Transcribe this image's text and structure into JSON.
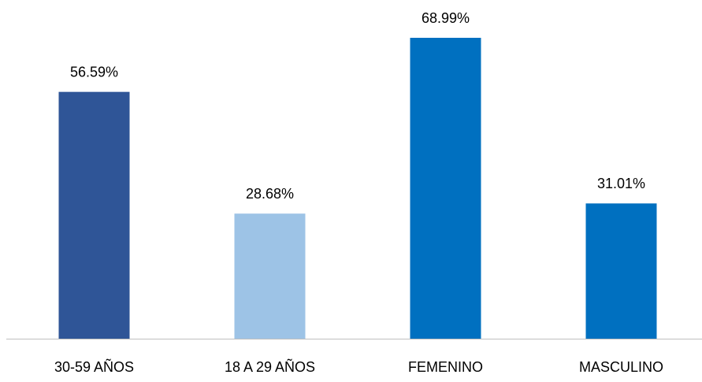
{
  "chart_data": {
    "type": "bar",
    "categories": [
      "30-59 AÑOS",
      "18 A 29 AÑOS",
      "FEMENINO",
      "MASCULINO"
    ],
    "values": [
      56.59,
      28.68,
      68.99,
      31.01
    ],
    "value_labels": [
      "56.59%",
      "28.68%",
      "68.99%",
      "31.01%"
    ],
    "colors": [
      "#2f5597",
      "#9dc3e6",
      "#0070c0",
      "#0070c0"
    ]
  }
}
